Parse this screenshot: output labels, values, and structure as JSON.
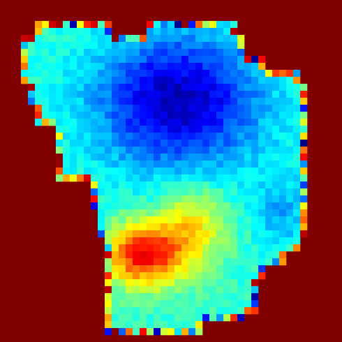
{
  "image": {
    "kind": "jet-colormap raster, irregular masked region",
    "grid_cells": 49,
    "background_color": "#800000",
    "colormap": [
      "#00007f",
      "#0000ff",
      "#007fff",
      "#00ffff",
      "#7fff7f",
      "#ffff00",
      "#ff7f00",
      "#ff0000",
      "#7f0000"
    ]
  }
}
